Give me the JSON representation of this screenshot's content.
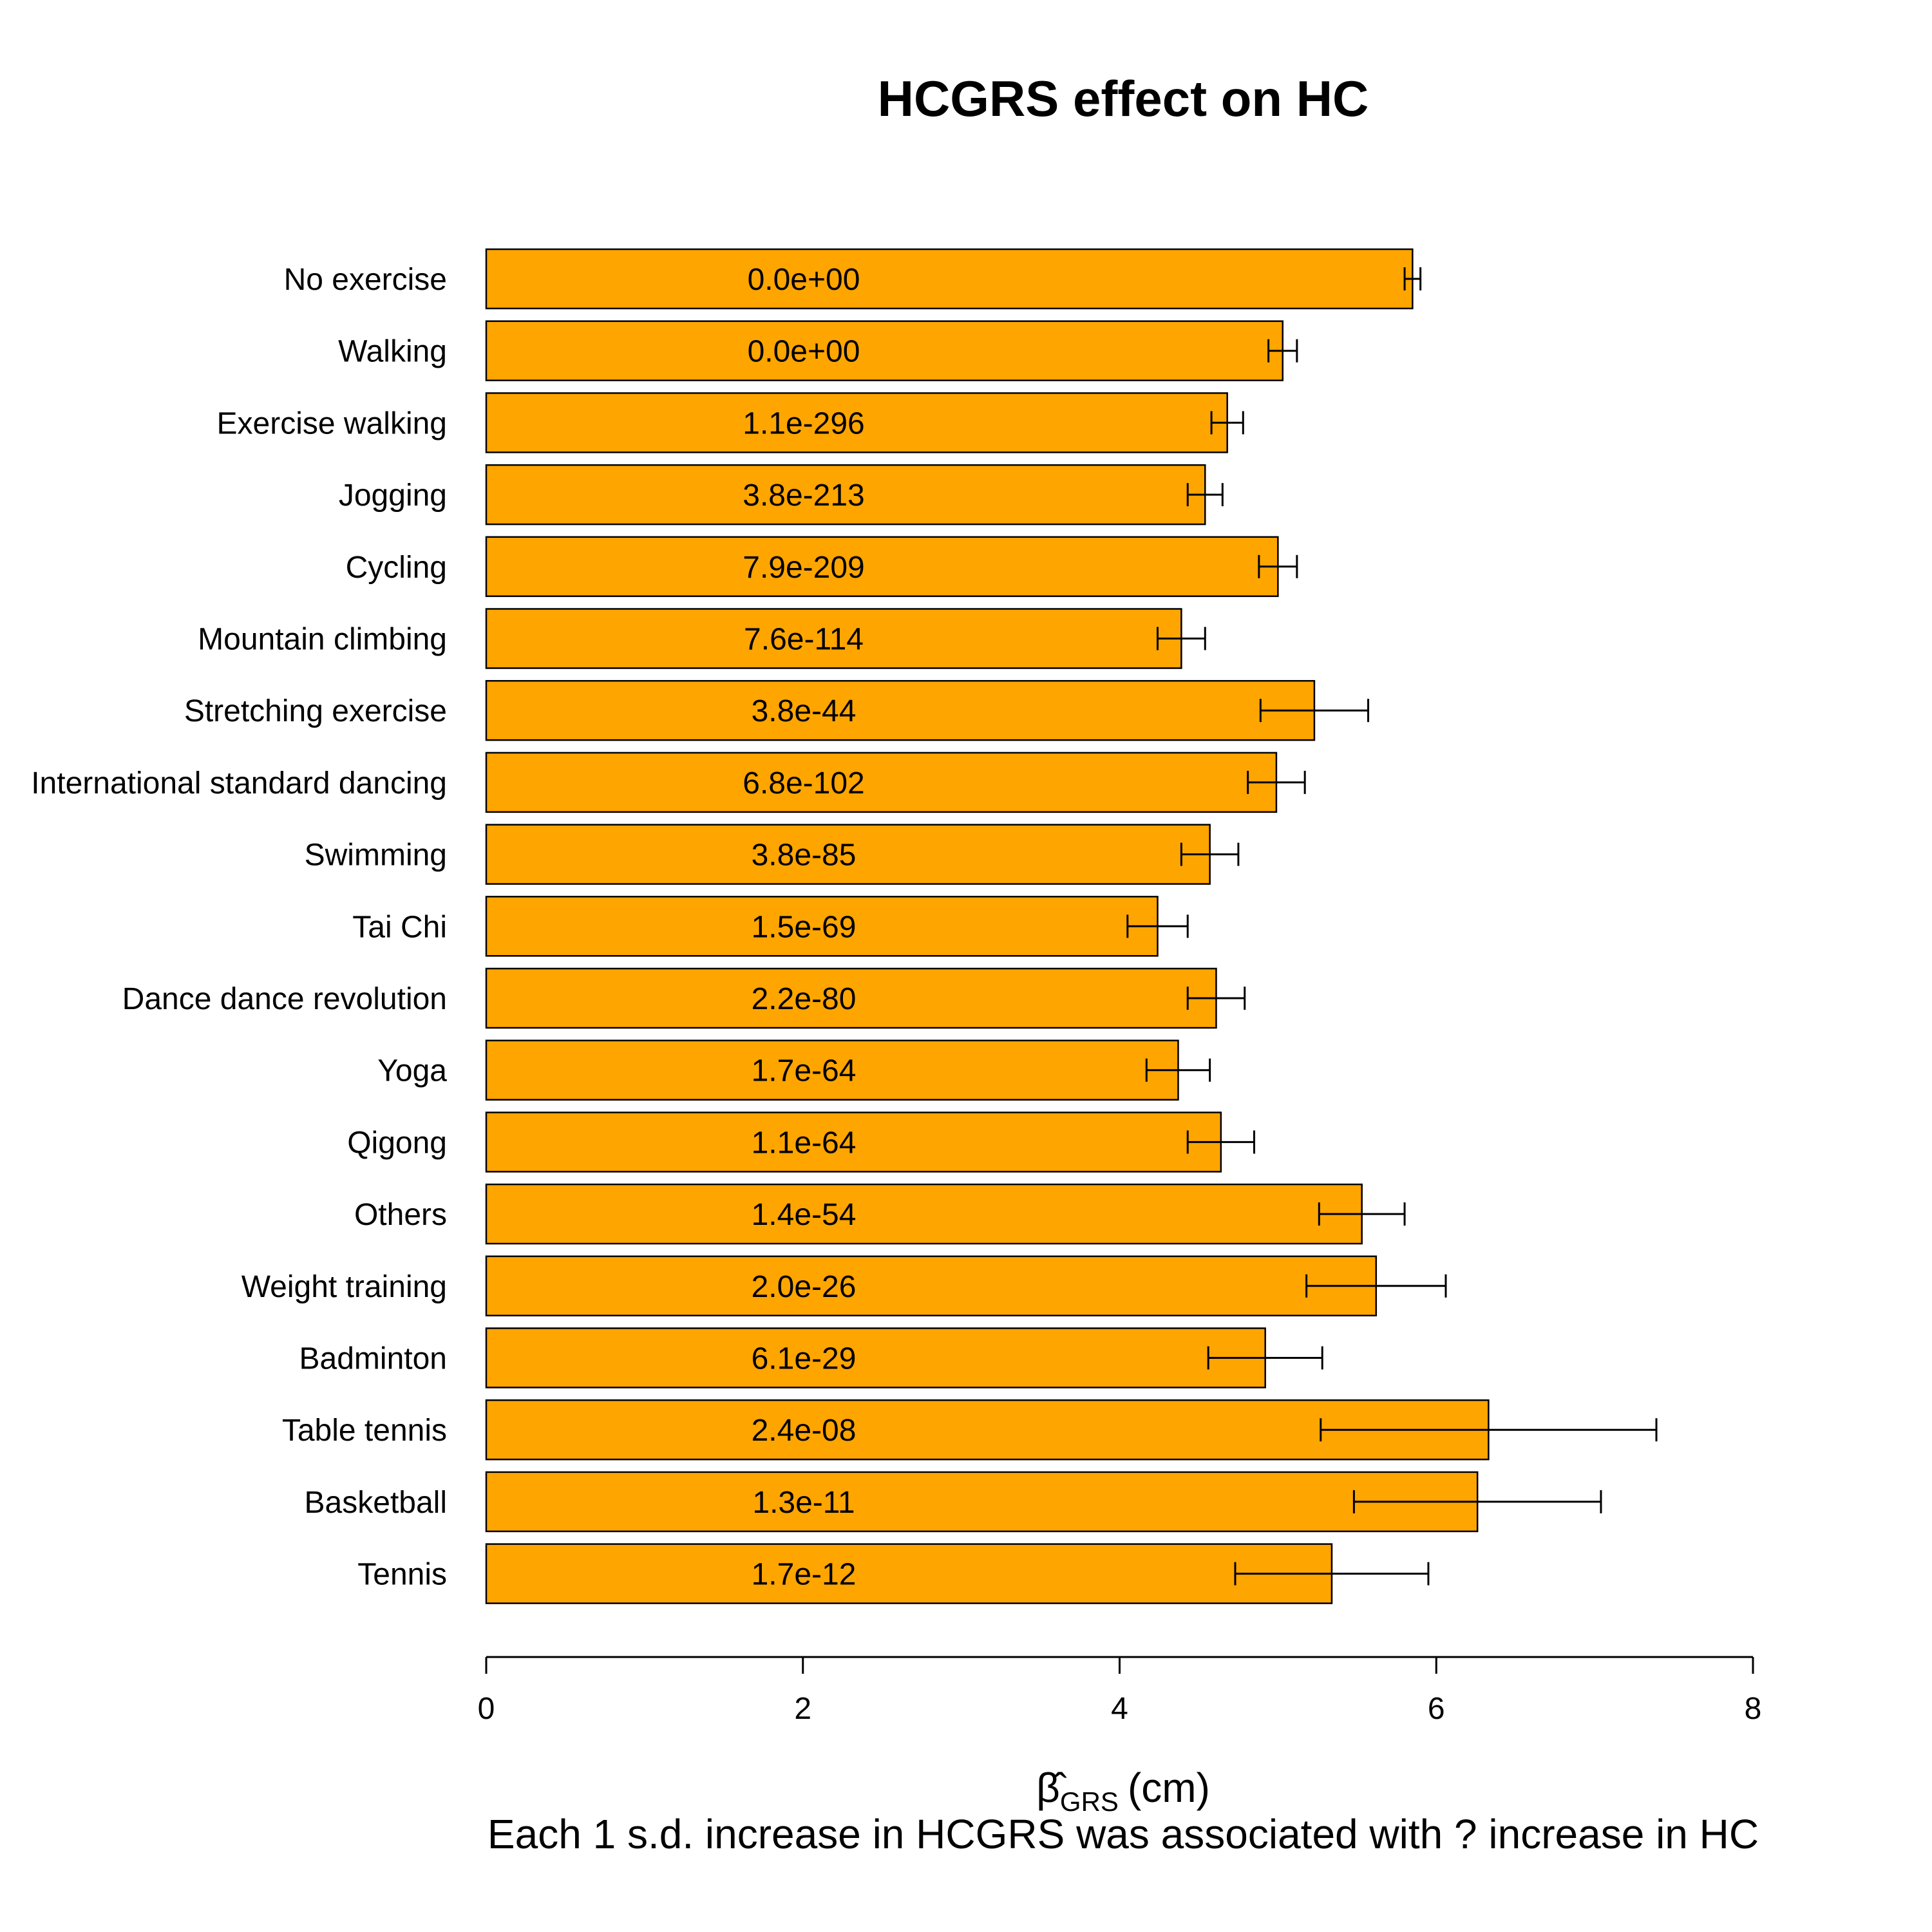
{
  "chart_data": {
    "type": "bar",
    "orientation": "horizontal",
    "title": "HCGRS effect on HC",
    "xlabel_main": "β̂",
    "xlabel_sub": "GRS",
    "xlabel_unit": "(cm)",
    "caption": "Each 1 s.d. increase in HCGRS was associated with ? increase in HC",
    "xlim": [
      0,
      8
    ],
    "xticks": [
      0,
      2,
      4,
      6,
      8
    ],
    "bar_color": "#FFA500",
    "categories": [
      "No exercise",
      "Walking",
      "Exercise walking",
      "Jogging",
      "Cycling",
      "Mountain climbing",
      "Stretching exercise",
      "International standard dancing",
      "Swimming",
      "Tai Chi",
      "Dance dance revolution",
      "Yoga",
      "Qigong",
      "Others",
      "Weight training",
      "Badminton",
      "Table tennis",
      "Basketball",
      "Tennis"
    ],
    "values": [
      5.85,
      5.03,
      4.68,
      4.54,
      5.0,
      4.39,
      5.23,
      4.99,
      4.57,
      4.24,
      4.61,
      4.37,
      4.64,
      5.53,
      5.62,
      4.92,
      6.33,
      6.26,
      5.34
    ],
    "ci_low": [
      5.8,
      4.94,
      4.58,
      4.43,
      4.88,
      4.24,
      4.89,
      4.81,
      4.39,
      4.05,
      4.43,
      4.17,
      4.43,
      5.26,
      5.18,
      4.56,
      5.27,
      5.48,
      4.73
    ],
    "ci_high": [
      5.9,
      5.12,
      4.78,
      4.65,
      5.12,
      4.54,
      5.57,
      5.17,
      4.75,
      4.43,
      4.79,
      4.57,
      4.85,
      5.8,
      6.06,
      5.28,
      7.39,
      7.04,
      5.95
    ],
    "p_labels": [
      "0.0e+00",
      "0.0e+00",
      "1.1e-296",
      "3.8e-213",
      "7.9e-209",
      "7.6e-114",
      "3.8e-44",
      "6.8e-102",
      "3.8e-85",
      "1.5e-69",
      "2.2e-80",
      "1.7e-64",
      "1.1e-64",
      "1.4e-54",
      "2.0e-26",
      "6.1e-29",
      "2.4e-08",
      "1.3e-11",
      "1.7e-12"
    ]
  }
}
